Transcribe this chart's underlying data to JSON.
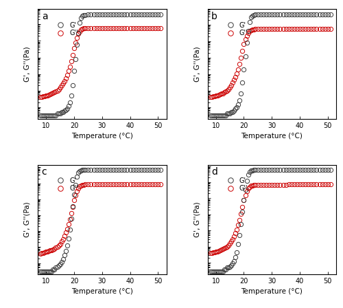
{
  "panels": [
    "a",
    "b",
    "c",
    "d"
  ],
  "xlabel": "Temperature (°C)",
  "ylabel": "G', G''(Pa)",
  "legend_G_prime": "G'",
  "legend_G_double_prime": "G''",
  "color_G_prime": "#3a3a3a",
  "color_G_double_prime": "#cc0000",
  "xlim": [
    7,
    53
  ],
  "xticks": [
    10,
    20,
    30,
    40,
    50
  ],
  "marker_size": 4.5,
  "figsize": [
    5.0,
    4.48
  ],
  "dpi": 100,
  "panel_label_fontsize": 10,
  "axis_label_fontsize": 7.5,
  "tick_fontsize": 7,
  "legend_fontsize": 7,
  "panel_a": {
    "Gp_x": [
      8,
      8.5,
      9,
      9.5,
      10,
      10.5,
      11,
      11.5,
      12,
      12.5,
      13,
      13.5,
      14,
      14.5,
      15,
      15.5,
      16,
      16.5,
      17,
      17.5,
      18,
      18.5,
      19,
      19.5,
      20,
      20.5,
      21,
      21.5,
      22,
      22.5,
      23,
      23.5,
      24,
      25,
      26,
      27,
      28,
      29,
      30,
      31,
      32,
      33,
      34,
      35,
      36,
      37,
      38,
      39,
      40,
      41,
      42,
      43,
      44,
      45,
      46,
      47,
      48,
      49,
      50,
      51
    ],
    "Gp_y": [
      0.003,
      0.003,
      0.003,
      0.003,
      0.003,
      0.003,
      0.003,
      0.003,
      0.003,
      0.003,
      0.003,
      0.003,
      0.004,
      0.004,
      0.004,
      0.005,
      0.005,
      0.006,
      0.007,
      0.008,
      0.012,
      0.02,
      0.05,
      0.2,
      1.5,
      8,
      60,
      300,
      1200,
      2500,
      3200,
      3500,
      3700,
      3850,
      3900,
      3950,
      3970,
      3980,
      3990,
      3995,
      4000,
      4002,
      4004,
      4006,
      4008,
      4009,
      4010,
      4011,
      4012,
      4013,
      4014,
      4015,
      4016,
      4017,
      4018,
      4019,
      4020,
      4021,
      4022,
      4025
    ],
    "Gpp_x": [
      8,
      8.5,
      9,
      9.5,
      10,
      10.5,
      11,
      11.5,
      12,
      12.5,
      13,
      13.5,
      14,
      14.5,
      15,
      15.5,
      16,
      16.5,
      17,
      17.5,
      18,
      18.5,
      19,
      19.5,
      20,
      20.5,
      21,
      21.5,
      22,
      22.5,
      23,
      23.5,
      24,
      25,
      26,
      27,
      28,
      29,
      30,
      31,
      32,
      33,
      34,
      35,
      36,
      37,
      38,
      39,
      40,
      41,
      42,
      43,
      44,
      45,
      46,
      47,
      48,
      49,
      50,
      51
    ],
    "Gpp_y": [
      0.04,
      0.042,
      0.044,
      0.046,
      0.05,
      0.052,
      0.055,
      0.06,
      0.065,
      0.07,
      0.08,
      0.09,
      0.1,
      0.12,
      0.16,
      0.2,
      0.28,
      0.38,
      0.55,
      0.85,
      1.5,
      2.8,
      6,
      14,
      35,
      80,
      160,
      260,
      380,
      480,
      540,
      560,
      570,
      575,
      578,
      580,
      581,
      582,
      583,
      584,
      585,
      586,
      586,
      587,
      587,
      588,
      588,
      589,
      589,
      589,
      590,
      590,
      590,
      591,
      591,
      591,
      592,
      592,
      592,
      595
    ]
  },
  "panel_b": {
    "Gp_x": [
      8,
      8.5,
      9,
      9.5,
      10,
      10.5,
      11,
      11.5,
      12,
      12.5,
      13,
      13.5,
      14,
      14.5,
      15,
      15.5,
      16,
      16.5,
      17,
      17.5,
      18,
      18.5,
      19,
      19.5,
      20,
      20.5,
      21,
      21.5,
      22,
      22.5,
      23,
      23.5,
      24,
      25,
      26,
      27,
      28,
      29,
      30,
      31,
      32,
      33,
      34,
      35,
      36,
      37,
      38,
      39,
      40,
      41,
      42,
      43,
      44,
      45,
      46,
      47,
      48,
      49,
      50,
      51
    ],
    "Gp_y": [
      0.003,
      0.003,
      0.003,
      0.003,
      0.003,
      0.003,
      0.003,
      0.003,
      0.003,
      0.003,
      0.003,
      0.003,
      0.004,
      0.004,
      0.004,
      0.005,
      0.005,
      0.006,
      0.008,
      0.01,
      0.015,
      0.025,
      0.07,
      0.3,
      2,
      12,
      80,
      400,
      1500,
      2800,
      3500,
      3800,
      4000,
      4100,
      4150,
      4180,
      4200,
      4210,
      4215,
      4220,
      4222,
      4224,
      4225,
      4226,
      4227,
      4228,
      4229,
      4230,
      4231,
      4232,
      4233,
      4234,
      4235,
      4236,
      4237,
      4238,
      4239,
      4240,
      4241,
      4245
    ],
    "Gpp_x": [
      8,
      8.5,
      9,
      9.5,
      10,
      10.5,
      11,
      11.5,
      12,
      12.5,
      13,
      13.5,
      14,
      14.5,
      15,
      15.5,
      16,
      16.5,
      17,
      17.5,
      18,
      18.5,
      19,
      19.5,
      20,
      20.5,
      21,
      21.5,
      22,
      22.5,
      23,
      23.5,
      24,
      25,
      26,
      27,
      28,
      29,
      30,
      31,
      32,
      33,
      34,
      35,
      36,
      37,
      38,
      39,
      40,
      41,
      42,
      43,
      44,
      45,
      46,
      47,
      48,
      49,
      50,
      51
    ],
    "Gpp_y": [
      0.04,
      0.042,
      0.044,
      0.046,
      0.05,
      0.052,
      0.055,
      0.06,
      0.065,
      0.07,
      0.08,
      0.09,
      0.1,
      0.12,
      0.16,
      0.22,
      0.3,
      0.45,
      0.7,
      1.1,
      2.0,
      4.0,
      10,
      25,
      65,
      130,
      220,
      310,
      400,
      470,
      510,
      530,
      540,
      545,
      548,
      550,
      551,
      552,
      553,
      554,
      555,
      556,
      557,
      558,
      559,
      560,
      561,
      562,
      563,
      564,
      565,
      566,
      567,
      568,
      569,
      570,
      571,
      572,
      573,
      575
    ]
  },
  "panel_c": {
    "Gp_x": [
      8,
      8.5,
      9,
      9.5,
      10,
      10.5,
      11,
      11.5,
      12,
      12.5,
      13,
      13.5,
      14,
      14.5,
      15,
      15.5,
      16,
      16.5,
      17,
      17.5,
      18,
      18.5,
      19,
      19.5,
      20,
      20.5,
      21,
      21.5,
      22,
      22.5,
      23,
      23.5,
      24,
      25,
      26,
      27,
      28,
      29,
      30,
      31,
      32,
      33,
      34,
      35,
      36,
      37,
      38,
      39,
      40,
      41,
      42,
      43,
      44,
      45,
      46,
      47,
      48,
      49,
      50,
      51
    ],
    "Gp_y": [
      0.003,
      0.003,
      0.003,
      0.003,
      0.003,
      0.003,
      0.003,
      0.003,
      0.003,
      0.004,
      0.004,
      0.005,
      0.006,
      0.007,
      0.009,
      0.012,
      0.018,
      0.03,
      0.055,
      0.12,
      0.35,
      1.2,
      6,
      35,
      200,
      800,
      2500,
      4500,
      5800,
      6400,
      6700,
      6850,
      6920,
      6950,
      6970,
      6980,
      6985,
      6988,
      6990,
      6991,
      6992,
      6993,
      6994,
      6995,
      6996,
      6997,
      6998,
      6999,
      7000,
      7001,
      7002,
      7003,
      7004,
      7005,
      7006,
      7007,
      7008,
      7009,
      7010,
      7015
    ],
    "Gpp_x": [
      8,
      8.5,
      9,
      9.5,
      10,
      10.5,
      11,
      11.5,
      12,
      12.5,
      13,
      13.5,
      14,
      14.5,
      15,
      15.5,
      16,
      16.5,
      17,
      17.5,
      18,
      18.5,
      19,
      19.5,
      20,
      20.5,
      21,
      21.5,
      22,
      22.5,
      23,
      23.5,
      24,
      25,
      26,
      27,
      28,
      29,
      30,
      31,
      32,
      33,
      34,
      35,
      36,
      37,
      38,
      39,
      40,
      41,
      42,
      43,
      44,
      45,
      46,
      47,
      48,
      49,
      50,
      51
    ],
    "Gpp_y": [
      0.04,
      0.042,
      0.044,
      0.046,
      0.05,
      0.052,
      0.055,
      0.06,
      0.065,
      0.07,
      0.08,
      0.09,
      0.1,
      0.12,
      0.16,
      0.22,
      0.32,
      0.5,
      0.8,
      1.4,
      2.8,
      5.5,
      13,
      32,
      85,
      180,
      320,
      480,
      620,
      720,
      780,
      810,
      830,
      845,
      855,
      860,
      863,
      865,
      866,
      867,
      868,
      869,
      870,
      871,
      872,
      873,
      874,
      875,
      876,
      877,
      878,
      879,
      880,
      881,
      882,
      883,
      884,
      885,
      886,
      890
    ]
  },
  "panel_d": {
    "Gp_x": [
      8,
      8.5,
      9,
      9.5,
      10,
      10.5,
      11,
      11.5,
      12,
      12.5,
      13,
      13.5,
      14,
      14.5,
      15,
      15.5,
      16,
      16.5,
      17,
      17.5,
      18,
      18.5,
      19,
      19.5,
      20,
      20.5,
      21,
      21.5,
      22,
      22.5,
      23,
      23.5,
      24,
      25,
      26,
      27,
      28,
      29,
      30,
      31,
      32,
      33,
      34,
      35,
      36,
      37,
      38,
      39,
      40,
      41,
      42,
      43,
      44,
      45,
      46,
      47,
      48,
      49,
      50,
      51
    ],
    "Gp_y": [
      0.003,
      0.003,
      0.003,
      0.003,
      0.003,
      0.003,
      0.003,
      0.003,
      0.003,
      0.003,
      0.004,
      0.004,
      0.005,
      0.005,
      0.006,
      0.007,
      0.009,
      0.013,
      0.022,
      0.045,
      0.14,
      0.5,
      2.5,
      14,
      80,
      350,
      1200,
      3000,
      4500,
      5200,
      5500,
      5650,
      5750,
      5800,
      5830,
      5850,
      5860,
      5865,
      5868,
      5870,
      5871,
      5872,
      5873,
      5874,
      5875,
      5876,
      5877,
      5878,
      5879,
      5880,
      5881,
      5882,
      5883,
      5884,
      5885,
      5886,
      5887,
      5888,
      5889,
      5892
    ],
    "Gpp_x": [
      8,
      8.5,
      9,
      9.5,
      10,
      10.5,
      11,
      11.5,
      12,
      12.5,
      13,
      13.5,
      14,
      14.5,
      15,
      15.5,
      16,
      16.5,
      17,
      17.5,
      18,
      18.5,
      19,
      19.5,
      20,
      20.5,
      21,
      21.5,
      22,
      22.5,
      23,
      23.5,
      24,
      25,
      26,
      27,
      28,
      29,
      30,
      31,
      32,
      33,
      34,
      35,
      36,
      37,
      38,
      39,
      40,
      41,
      42,
      43,
      44,
      45,
      46,
      47,
      48,
      49,
      50,
      51
    ],
    "Gpp_y": [
      0.04,
      0.042,
      0.044,
      0.046,
      0.05,
      0.052,
      0.055,
      0.06,
      0.065,
      0.07,
      0.08,
      0.09,
      0.1,
      0.12,
      0.16,
      0.22,
      0.3,
      0.45,
      0.7,
      1.2,
      2.2,
      4.5,
      11,
      28,
      75,
      160,
      280,
      400,
      510,
      590,
      640,
      665,
      680,
      690,
      695,
      698,
      700,
      701,
      702,
      703,
      704,
      705,
      706,
      707,
      708,
      709,
      710,
      711,
      712,
      713,
      714,
      715,
      716,
      717,
      718,
      719,
      720,
      721,
      722,
      725
    ]
  }
}
